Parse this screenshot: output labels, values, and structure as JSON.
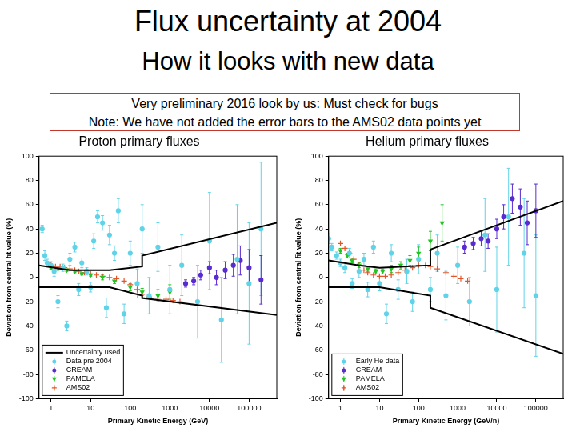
{
  "slide": {
    "title": "Flux uncertainty at 2004",
    "subtitle": "How it looks with new data",
    "note_lines": [
      "Very preliminary 2016 look by us: Must check for bugs",
      "Note: We have not added the error bars to the AMS02 data points yet"
    ]
  },
  "chart_data": [
    {
      "type": "scatter",
      "title": "Proton primary fluxes",
      "x_label": "Primary Kinetic Energy (GeV)",
      "y_label": "Deviation from central fit value (%)",
      "log": "x",
      "grid": false,
      "legend": "lower left",
      "xlim": [
        0.5,
        500000
      ],
      "xticks": [
        1,
        10,
        100,
        1000,
        10000,
        100000
      ],
      "ylim": [
        -100,
        100
      ],
      "yticks": [
        -100,
        -80,
        -60,
        -40,
        -20,
        0,
        20,
        40,
        60,
        80,
        100
      ],
      "series": [
        {
          "name": "Uncertainty used",
          "type": "line",
          "color": "#000000",
          "marker": "none",
          "line_style": "solid",
          "x": [
            0.5,
            3,
            30,
            200,
            200,
            500000
          ],
          "values": [
            10,
            6,
            6,
            9,
            18,
            45
          ],
          "lower": [
            -8,
            -8,
            -8,
            -15,
            -17,
            -31
          ]
        },
        {
          "name": "Data pre 2004",
          "type": "scatter",
          "color": "#5fd3e8",
          "marker": "circle",
          "x": [
            0.6,
            0.7,
            0.8,
            1,
            1.2,
            1.5,
            2,
            2.5,
            3,
            4,
            5,
            6,
            8,
            10,
            12,
            15,
            20,
            25,
            30,
            40,
            50,
            70,
            100,
            150,
            200,
            300,
            500,
            1000,
            2000,
            5000,
            10000,
            20000,
            50000,
            100000,
            200000
          ],
          "values": [
            40,
            18,
            12,
            10,
            5,
            -20,
            8,
            -40,
            15,
            25,
            -10,
            12,
            5,
            -8,
            30,
            50,
            45,
            -25,
            35,
            20,
            55,
            -30,
            20,
            -5,
            40,
            -15,
            25,
            -10,
            10,
            -20,
            30,
            -35,
            15,
            -5,
            40
          ],
          "errors": [
            3,
            4,
            3,
            3,
            4,
            5,
            3,
            4,
            5,
            4,
            5,
            4,
            3,
            4,
            6,
            5,
            6,
            8,
            8,
            6,
            10,
            8,
            10,
            12,
            20,
            15,
            20,
            20,
            25,
            30,
            40,
            35,
            45,
            50,
            55
          ]
        },
        {
          "name": "CREAM",
          "type": "scatter",
          "color": "#5a2bd0",
          "marker": "circle",
          "x": [
            2500,
            4000,
            6000,
            10000,
            15000,
            25000,
            40000,
            60000,
            100000,
            200000
          ],
          "values": [
            -5,
            -3,
            2,
            8,
            0,
            6,
            10,
            14,
            8,
            -2
          ],
          "errors": [
            3,
            3,
            4,
            5,
            6,
            7,
            9,
            12,
            15,
            20
          ]
        },
        {
          "name": "PAMELA",
          "type": "scatter",
          "color": "#22c322",
          "marker": "triangle_down",
          "x": [
            1,
            1.5,
            2.5,
            4,
            6,
            10,
            20,
            40,
            100,
            200,
            500,
            1000
          ],
          "values": [
            8,
            7,
            6,
            5,
            3,
            2,
            0,
            -3,
            -8,
            -12,
            -15,
            -12
          ],
          "errors": [
            1,
            1,
            1,
            1,
            1,
            1,
            2,
            2,
            3,
            3,
            5,
            6
          ]
        },
        {
          "name": "AMS02",
          "type": "scatter",
          "color": "#e0552a",
          "marker": "plus",
          "x": [
            1,
            1.3,
            1.7,
            2.2,
            3,
            4,
            5,
            7,
            10,
            14,
            20,
            30,
            45,
            70,
            100,
            150,
            200,
            300,
            500,
            800,
            1200,
            1800
          ],
          "values": [
            10,
            9,
            9,
            8,
            7,
            6,
            5,
            4,
            3,
            2,
            1,
            0,
            -1,
            -3,
            -6,
            -10,
            -14,
            -16,
            -17,
            -18,
            -19,
            -20
          ]
        }
      ]
    },
    {
      "type": "scatter",
      "title": "Helium primary fluxes",
      "x_label": "Primary Kinetic Energy (GeV/n)",
      "y_label": "Deviation from central fit value (%)",
      "log": "x",
      "grid": false,
      "legend": "lower left",
      "xlim": [
        0.5,
        500000
      ],
      "xticks": [
        1,
        10,
        100,
        1000,
        10000,
        100000
      ],
      "ylim": [
        -100,
        100
      ],
      "yticks": [
        -100,
        -80,
        -60,
        -40,
        -20,
        0,
        20,
        40,
        60,
        80,
        100
      ],
      "series": [
        {
          "type": "line",
          "color": "#000000",
          "marker": "none",
          "line_style": "solid",
          "x": [
            0.5,
            3,
            10,
            200,
            200,
            500000
          ],
          "values": [
            14,
            10,
            8,
            10,
            23,
            63
          ],
          "lower": [
            -8,
            -8,
            -8,
            -15,
            -25,
            -63
          ]
        },
        {
          "name": "Early He data",
          "type": "scatter",
          "color": "#5fd3e8",
          "marker": "circle",
          "x": [
            0.5,
            0.6,
            0.8,
            1,
            1.3,
            1.7,
            2,
            3,
            4,
            5,
            7,
            10,
            15,
            20,
            30,
            50,
            70,
            100,
            200,
            300,
            500,
            1000,
            2000,
            5000,
            10000,
            20000,
            50000,
            100000
          ],
          "values": [
            32,
            25,
            18,
            12,
            8,
            20,
            -5,
            5,
            15,
            -10,
            25,
            -5,
            -30,
            20,
            -10,
            5,
            -20,
            15,
            -10,
            20,
            -15,
            10,
            -20,
            35,
            -10,
            50,
            20,
            -15
          ],
          "errors": [
            4,
            3,
            3,
            3,
            4,
            4,
            4,
            5,
            5,
            6,
            5,
            6,
            8,
            7,
            8,
            10,
            8,
            12,
            10,
            15,
            20,
            15,
            20,
            30,
            35,
            40,
            45,
            50
          ]
        },
        {
          "name": "CREAM",
          "type": "scatter",
          "color": "#5a2bd0",
          "marker": "circle",
          "x": [
            1500,
            2500,
            4000,
            6000,
            10000,
            15000,
            25000,
            40000,
            60000,
            100000
          ],
          "values": [
            25,
            28,
            32,
            30,
            40,
            50,
            65,
            58,
            45,
            55
          ],
          "errors": [
            5,
            5,
            6,
            6,
            8,
            10,
            12,
            15,
            18,
            22
          ]
        },
        {
          "name": "PAMELA",
          "type": "scatter",
          "color": "#22c322",
          "marker": "triangle_down",
          "x": [
            1,
            1.5,
            2,
            3,
            5,
            8,
            12,
            20,
            35,
            60,
            100,
            200,
            400
          ],
          "values": [
            22,
            18,
            14,
            10,
            7,
            5,
            5,
            7,
            10,
            14,
            20,
            30,
            45
          ],
          "errors": [
            2,
            2,
            2,
            2,
            2,
            2,
            2,
            3,
            3,
            4,
            5,
            8,
            15
          ]
        },
        {
          "name": "AMS02",
          "type": "scatter",
          "color": "#e0552a",
          "marker": "plus",
          "x": [
            1,
            1.3,
            1.7,
            2.2,
            3,
            4,
            5,
            7,
            10,
            14,
            20,
            30,
            45,
            70,
            100,
            150,
            200,
            300,
            500,
            800,
            1200,
            1800
          ],
          "values": [
            28,
            24,
            20,
            15,
            10,
            6,
            4,
            2,
            1,
            1,
            2,
            4,
            6,
            8,
            10,
            10,
            9,
            7,
            4,
            1,
            -1,
            -3
          ]
        }
      ]
    }
  ]
}
